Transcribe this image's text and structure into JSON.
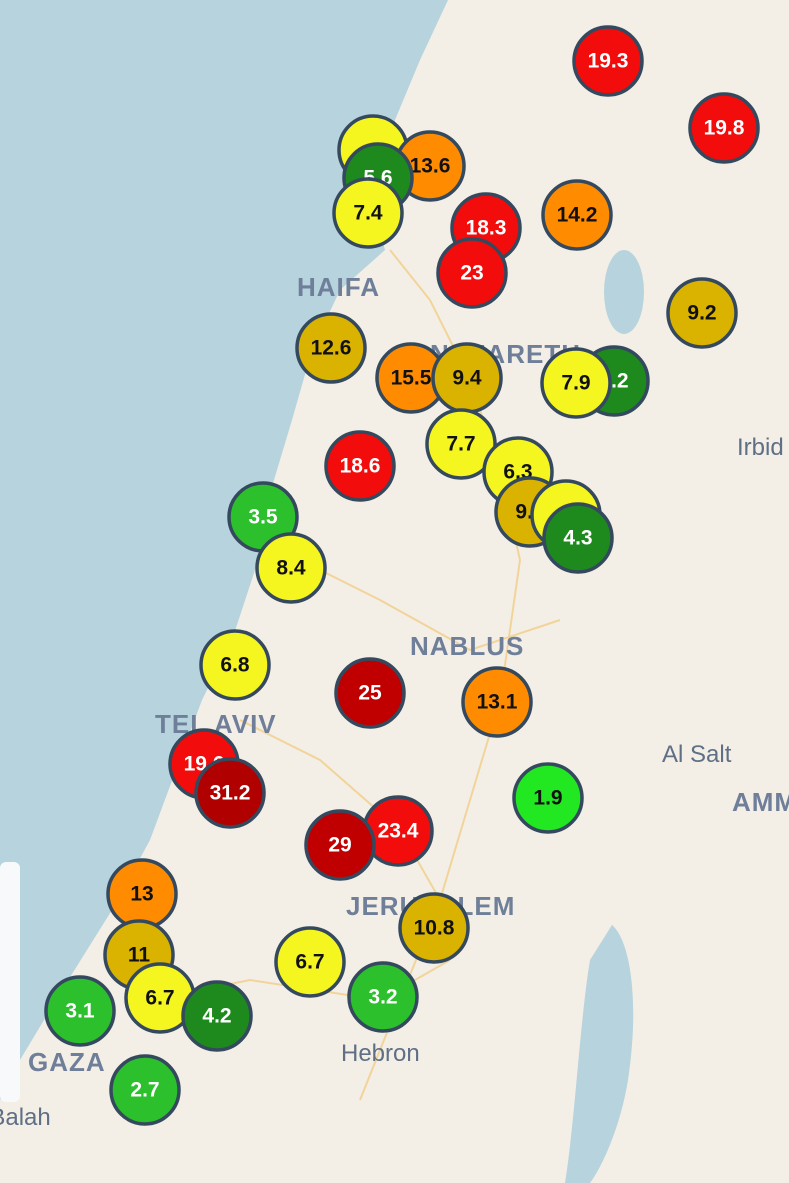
{
  "places": [
    {
      "name": "HAIFA",
      "kind": "city"
    },
    {
      "name": "NAZARETH",
      "kind": "city"
    },
    {
      "name": "Irbid",
      "kind": "town"
    },
    {
      "name": "NABLUS",
      "kind": "city"
    },
    {
      "name": "TEL AVIV",
      "kind": "city"
    },
    {
      "name": "Al Salt",
      "kind": "town"
    },
    {
      "name": "AMMAN",
      "kind": "city"
    },
    {
      "name": "JERUSALEM",
      "kind": "city"
    },
    {
      "name": "Hebron",
      "kind": "town"
    },
    {
      "name": "GAZA",
      "kind": "city"
    },
    {
      "name": "Deir el-Balah",
      "kind": "town"
    }
  ],
  "markers": [
    {
      "value": 19.3,
      "color": "#f20c0c"
    },
    {
      "value": 19.8,
      "color": "#f20c0c"
    },
    {
      "color": "#f5f51f"
    },
    {
      "value": 13.6,
      "color": "#ff8c00"
    },
    {
      "value": 5.6,
      "color": "#1e8a1e"
    },
    {
      "value": 7.4,
      "color": "#f5f51f"
    },
    {
      "value": 18.3,
      "color": "#f20c0c"
    },
    {
      "value": 14.2,
      "color": "#ff8c00"
    },
    {
      "value": 23,
      "color": "#f20c0c"
    },
    {
      "value": 9.2,
      "color": "#d9b300"
    },
    {
      "value": 12.6,
      "color": "#d9b300"
    },
    {
      "value": 15.5,
      "color": "#ff8c00"
    },
    {
      "value": 9.4,
      "color": "#d9b300"
    },
    {
      "value": 5.2,
      "color": "#1e8a1e"
    },
    {
      "value": 7.9,
      "color": "#f5f51f"
    },
    {
      "value": 7.7,
      "color": "#f5f51f"
    },
    {
      "value": 18.6,
      "color": "#f20c0c"
    },
    {
      "value": 6.3,
      "color": "#f5f51f"
    },
    {
      "value": 9.1,
      "color": "#d9b300"
    },
    {
      "color": "#f5f51f"
    },
    {
      "value": 4.3,
      "color": "#1e8a1e"
    },
    {
      "value": 3.5,
      "color": "#2cc02c"
    },
    {
      "value": 8.4,
      "color": "#f5f51f"
    },
    {
      "value": 6.8,
      "color": "#f5f51f"
    },
    {
      "value": 25,
      "color": "#c00000"
    },
    {
      "value": 13.1,
      "color": "#ff8c00"
    },
    {
      "value": 19.6,
      "color": "#f20c0c"
    },
    {
      "value": 31.2,
      "color": "#b00000"
    },
    {
      "value": 1.9,
      "color": "#22e822"
    },
    {
      "value": 23.4,
      "color": "#f20c0c"
    },
    {
      "value": 29,
      "color": "#c00000"
    },
    {
      "value": 13,
      "color": "#ff8c00"
    },
    {
      "value": 10.8,
      "color": "#d9b300"
    },
    {
      "value": 11,
      "color": "#d9b300"
    },
    {
      "value": 6.7,
      "color": "#f5f51f"
    },
    {
      "value": 3.2,
      "color": "#2cc02c"
    },
    {
      "value": 3.1,
      "color": "#2cc02c"
    },
    {
      "value": 6.7,
      "color": "#f5f51f"
    },
    {
      "value": 4.2,
      "color": "#1e8a1e"
    },
    {
      "value": 2.7,
      "color": "#2cc02c"
    }
  ]
}
